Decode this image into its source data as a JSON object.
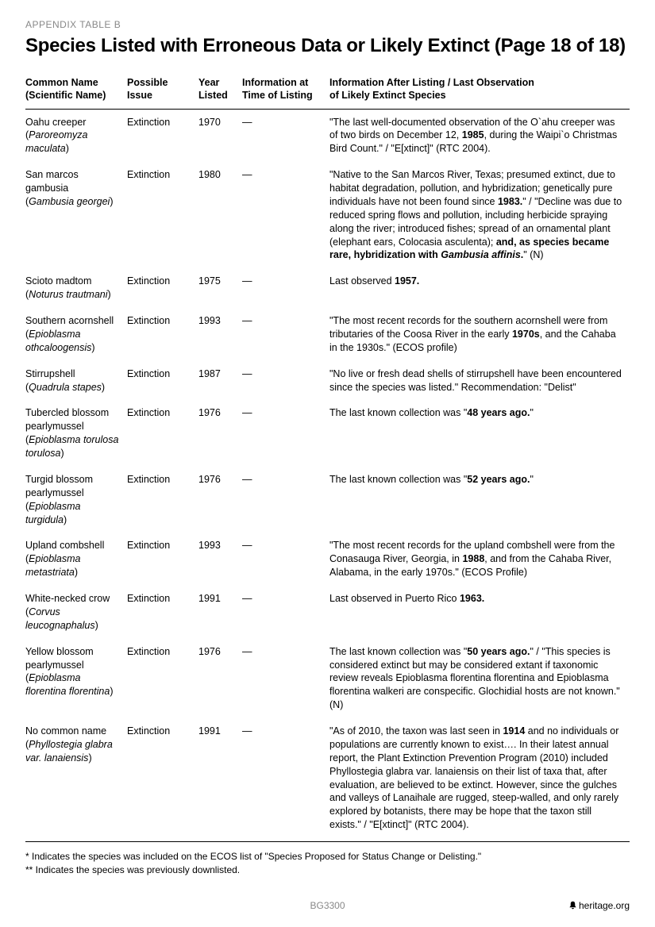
{
  "appendixLabel": "APPENDIX TABLE B",
  "title": "Species Listed with Erroneous Data or Likely Extinct (Page 18 of 18)",
  "columns": {
    "c1a": "Common Name",
    "c1b": "(Scientific Name)",
    "c2": "Possible Issue",
    "c3a": "Year",
    "c3b": "Listed",
    "c4a": "Information at",
    "c4b": "Time of Listing",
    "c5a": "Information After Listing / Last Observation",
    "c5b": "of Likely Extinct Species"
  },
  "rows": [
    {
      "common": "Oahu creeper",
      "sci": "Paroreomyza maculata",
      "issue": "Extinction",
      "year": "1970",
      "before": "—",
      "after": "\"The last well-documented observation of the O`ahu creeper was of two birds on December 12, <b>1985</b>, during the Waipi`o Christmas Bird Count.\" / \"E[xtinct]\" (RTC 2004)."
    },
    {
      "common": "San marcos gambusia",
      "sci": "Gambusia georgei",
      "issue": "Extinction",
      "year": "1980",
      "before": "—",
      "after": "\"Native to the San Marcos River, Texas; presumed extinct, due to habitat degradation, pollution, and hybridization; genetically pure individuals have not been found since <b>1983.</b>\" / \"Decline was due to reduced spring flows and pollution, including herbicide spraying along the river; introduced fishes; spread of an ornamental plant (elephant ears, Colocasia asculenta); <b>and, as species became rare, hybridization with <i>Gambusia affinis</i>.</b>\" (N)"
    },
    {
      "common": "Scioto madtom",
      "sci": "Noturus trautmani",
      "issue": "Extinction",
      "year": "1975",
      "before": "—",
      "after": "Last observed <b>1957.</b>"
    },
    {
      "common": "Southern acornshell",
      "sci": "Epioblasma othcaloogensis",
      "issue": "Extinction",
      "year": "1993",
      "before": "—",
      "after": "\"The most recent records for the southern acornshell were from tributaries of the Coosa River in the early <b>1970s</b>, and the Cahaba in the 1930s.\" (ECOS profile)"
    },
    {
      "common": "Stirrupshell",
      "sci": "Quadrula stapes",
      "issue": "Extinction",
      "year": "1987",
      "before": "—",
      "after": "\"No live or fresh dead shells of stirrupshell have been encountered since the species was listed.\" Recommendation: \"Delist\""
    },
    {
      "common": "Tubercled blossom pearlymussel",
      "sci": "Epioblasma torulosa torulosa",
      "issue": "Extinction",
      "year": "1976",
      "before": "—",
      "after": "The last known collection was \"<b>48 years ago.</b>\""
    },
    {
      "common": "Turgid blossom pearlymussel",
      "sci": "Epioblasma turgidula",
      "issue": "Extinction",
      "year": "1976",
      "before": "—",
      "after": "The last known collection was \"<b>52 years ago.</b>\""
    },
    {
      "common": "Upland combshell",
      "sci": "Epioblasma metastriata",
      "issue": "Extinction",
      "year": "1993",
      "before": "—",
      "after": "\"The most recent records for the upland combshell were from the Conasauga River, Georgia, in <b>1988</b>, and from the Cahaba River, Alabama, in the early 1970s.\" (ECOS Profile)"
    },
    {
      "common": "White-necked crow",
      "sci": "Corvus leucognaphalus",
      "issue": "Extinction",
      "year": "1991",
      "before": "—",
      "after": "Last observed in Puerto Rico <b>1963.</b>"
    },
    {
      "common": "Yellow blossom pearlymussel",
      "sci": "Epioblasma florentina florentina",
      "issue": "Extinction",
      "year": "1976",
      "before": "—",
      "after": "The last known collection was \"<b>50 years ago.</b>\" / \"This species is considered extinct but may be considered extant if taxonomic review reveals Epioblasma florentina florentina and Epioblasma florentina walkeri are conspecific. Glochidial hosts are not known.\" (N)"
    },
    {
      "common": "No common name",
      "sci": "Phyllostegia glabra var. lanaiensis",
      "issue": "Extinction",
      "year": "1991",
      "before": "—",
      "after": "\"As of 2010, the taxon was last seen in <b>1914</b> and no individuals or populations are currently known to exist…. In their latest annual report, the Plant Extinction Prevention Program (2010) included Phyllostegia glabra var. lanaiensis on their list of taxa that, after evaluation, are believed to be extinct. However, since the gulches and valleys of Lanaihale are rugged, steep-walled, and only rarely explored by botanists, there may be hope that the taxon still exists.\" / \"E[xtinct]\" (RTC 2004)."
    }
  ],
  "footnote1": "* Indicates the species was included on the ECOS list of \"Species Proposed for Status Change or Delisting.\"",
  "footnote2": "** Indicates the species was previously downlisted.",
  "footerCode": "BG3300",
  "footerOrg": "heritage.org"
}
